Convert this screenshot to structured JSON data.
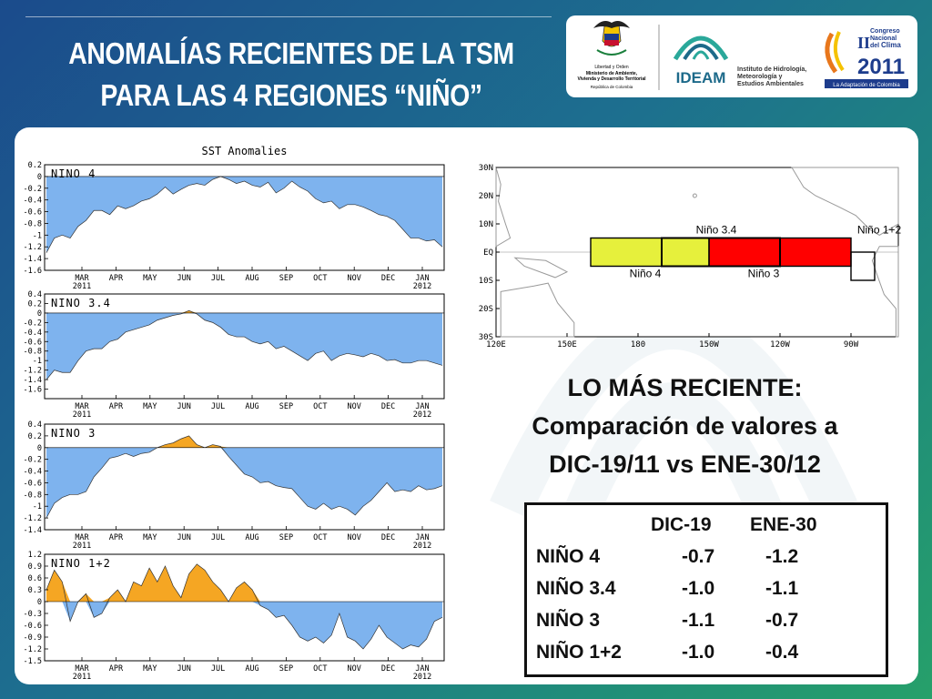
{
  "title": {
    "line1": "ANOMALÍAS RECIENTES DE LA TSM",
    "line2": "PARA LAS 4 REGIONES “NIÑO”"
  },
  "logos": {
    "ministry_text": [
      "Libertad y Orden",
      "Ministerio de Ambiente,",
      "Vivienda y Desarrollo Territorial",
      "República de Colombia"
    ],
    "ideam_name": "IDEAM",
    "ideam_text": [
      "Instituto de Hidrología,",
      "Meteorología y",
      "Estudios Ambientales"
    ],
    "congreso_text": [
      "II",
      "Congreso",
      "Nacional",
      "del",
      "Clima",
      "2011",
      "La Adaptación de Colombia"
    ]
  },
  "colors": {
    "negative": "#7eb3ee",
    "positive": "#f5a623",
    "nino4_box": "#e6f03c",
    "nino34_box": "#ff0000"
  },
  "chart_data": [
    {
      "type": "area",
      "title": "SST Anomalies",
      "label": "NINO 4",
      "x_tick_labels": [
        "MAR",
        "APR",
        "MAY",
        "JUN",
        "JUL",
        "AUG",
        "SEP",
        "OCT",
        "NOV",
        "DEC",
        "JAN"
      ],
      "year_labels": [
        "2011",
        "2012"
      ],
      "ylim": [
        -1.6,
        0.2
      ],
      "y_ticks": [
        "0.2",
        "0",
        "-0.2",
        "-0.4",
        "-0.6",
        "-0.8",
        "-1",
        "-1.2",
        "-1.4",
        "-1.6"
      ],
      "values": [
        -1.3,
        -1.05,
        -1.0,
        -1.05,
        -0.85,
        -0.75,
        -0.58,
        -0.58,
        -0.65,
        -0.5,
        -0.55,
        -0.5,
        -0.42,
        -0.38,
        -0.3,
        -0.18,
        -0.3,
        -0.22,
        -0.15,
        -0.12,
        -0.15,
        -0.05,
        0.0,
        -0.05,
        -0.12,
        -0.08,
        -0.15,
        -0.18,
        -0.1,
        -0.28,
        -0.2,
        -0.08,
        -0.18,
        -0.25,
        -0.38,
        -0.45,
        -0.42,
        -0.55,
        -0.48,
        -0.48,
        -0.52,
        -0.58,
        -0.65,
        -0.68,
        -0.75,
        -0.9,
        -1.05,
        -1.05,
        -1.1,
        -1.08,
        -1.2
      ]
    },
    {
      "type": "area",
      "label": "NINO 3.4",
      "x_tick_labels": [
        "MAR",
        "APR",
        "MAY",
        "JUN",
        "JUL",
        "AUG",
        "SEP",
        "OCT",
        "NOV",
        "DEC",
        "JAN"
      ],
      "year_labels": [
        "2011",
        "2012"
      ],
      "ylim": [
        -1.8,
        0.4
      ],
      "y_ticks": [
        "0.4",
        "0.2",
        "0",
        "-0.2",
        "-0.4",
        "-0.6",
        "-0.8",
        "-1",
        "-1.2",
        "-1.4",
        "-1.6"
      ],
      "values": [
        -1.4,
        -1.2,
        -1.25,
        -1.25,
        -1.0,
        -0.8,
        -0.75,
        -0.75,
        -0.6,
        -0.55,
        -0.4,
        -0.35,
        -0.3,
        -0.25,
        -0.15,
        -0.1,
        -0.05,
        -0.02,
        0.05,
        -0.02,
        -0.15,
        -0.2,
        -0.3,
        -0.45,
        -0.5,
        -0.5,
        -0.6,
        -0.65,
        -0.6,
        -0.75,
        -0.7,
        -0.8,
        -0.9,
        -1.0,
        -0.85,
        -0.8,
        -1.0,
        -0.9,
        -0.85,
        -0.88,
        -0.92,
        -0.85,
        -0.9,
        -1.0,
        -0.98,
        -1.05,
        -1.05,
        -1.0,
        -1.0,
        -1.05,
        -1.1
      ]
    },
    {
      "type": "area",
      "label": "NINO 3",
      "x_tick_labels": [
        "MAR",
        "APR",
        "MAY",
        "JUN",
        "JUL",
        "AUG",
        "SEP",
        "OCT",
        "NOV",
        "DEC",
        "JAN"
      ],
      "year_labels": [
        "2011",
        "2012"
      ],
      "ylim": [
        -1.4,
        0.4
      ],
      "y_ticks": [
        "0.4",
        "0.2",
        "0",
        "-0.2",
        "-0.4",
        "-0.6",
        "-0.8",
        "-1",
        "-1.2",
        "-1.4"
      ],
      "values": [
        -1.2,
        -0.95,
        -0.85,
        -0.8,
        -0.8,
        -0.75,
        -0.5,
        -0.35,
        -0.18,
        -0.15,
        -0.1,
        -0.15,
        -0.1,
        -0.08,
        0.0,
        0.05,
        0.08,
        0.15,
        0.2,
        0.05,
        0.0,
        0.05,
        0.02,
        -0.15,
        -0.3,
        -0.45,
        -0.5,
        -0.6,
        -0.58,
        -0.65,
        -0.68,
        -0.7,
        -0.85,
        -1.0,
        -1.05,
        -0.95,
        -1.05,
        -1.0,
        -1.05,
        -1.15,
        -1.0,
        -0.9,
        -0.75,
        -0.6,
        -0.75,
        -0.72,
        -0.75,
        -0.65,
        -0.72,
        -0.7,
        -0.65
      ]
    },
    {
      "type": "area",
      "label": "NINO 1+2",
      "x_tick_labels": [
        "MAR",
        "APR",
        "MAY",
        "JUN",
        "JUL",
        "AUG",
        "SEP",
        "OCT",
        "NOV",
        "DEC",
        "JAN"
      ],
      "year_labels": [
        "2011",
        "2012"
      ],
      "ylim": [
        -1.5,
        1.2
      ],
      "y_ticks": [
        "1.2",
        "0.9",
        "0.6",
        "0.3",
        "0",
        "-0.3",
        "-0.6",
        "-0.9",
        "-1.2",
        "-1.5"
      ],
      "values": [
        0.3,
        0.8,
        0.5,
        -0.5,
        0.0,
        0.2,
        -0.4,
        -0.3,
        0.1,
        0.3,
        0.0,
        0.5,
        0.4,
        0.85,
        0.5,
        0.9,
        0.4,
        0.1,
        0.7,
        0.95,
        0.8,
        0.5,
        0.3,
        0.0,
        0.35,
        0.5,
        0.3,
        -0.1,
        -0.2,
        -0.4,
        -0.35,
        -0.6,
        -0.9,
        -1.0,
        -0.9,
        -1.05,
        -0.85,
        -0.3,
        -0.9,
        -1.0,
        -1.2,
        -0.95,
        -0.6,
        -0.9,
        -1.05,
        -1.2,
        -1.1,
        -1.15,
        -0.95,
        -0.5,
        -0.4
      ]
    }
  ],
  "map": {
    "lat_labels": [
      "30N",
      "20N",
      "10N",
      "EQ",
      "10S",
      "20S",
      "30S"
    ],
    "lon_labels": [
      "120E",
      "150E",
      "180",
      "150W",
      "120W",
      "90W"
    ],
    "regions": [
      {
        "name": "Niño 4",
        "label": "Niño 4",
        "lon": [
          160,
          210
        ],
        "lat": [
          -5,
          5
        ]
      },
      {
        "name": "Niño 3.4",
        "label": "Niño 3.4",
        "lon": [
          190,
          240
        ],
        "lat": [
          -5,
          5
        ]
      },
      {
        "name": "Niño 3",
        "label": "Niño 3",
        "lon": [
          210,
          270
        ],
        "lat": [
          -5,
          5
        ]
      },
      {
        "name": "Niño 1+2",
        "label": "Niño 1+2",
        "lon": [
          270,
          280
        ],
        "lat": [
          -10,
          0
        ]
      }
    ]
  },
  "latest": {
    "line1": "LO MÁS RECIENTE:",
    "line2": "Comparación de valores a",
    "line3": "DIC-19/11 vs ENE-30/12"
  },
  "table": {
    "headers": [
      "DIC-19",
      "ENE-30"
    ],
    "rows": [
      {
        "region": "NIÑO 4",
        "dic": "-0.7",
        "ene": "-1.2"
      },
      {
        "region": "NIÑO 3.4",
        "dic": "-1.0",
        "ene": "-1.1"
      },
      {
        "region": "NIÑO 3",
        "dic": "-1.1",
        "ene": "-0.7"
      },
      {
        "region": "NIÑO 1+2",
        "dic": "-1.0",
        "ene": "-0.4"
      }
    ]
  }
}
